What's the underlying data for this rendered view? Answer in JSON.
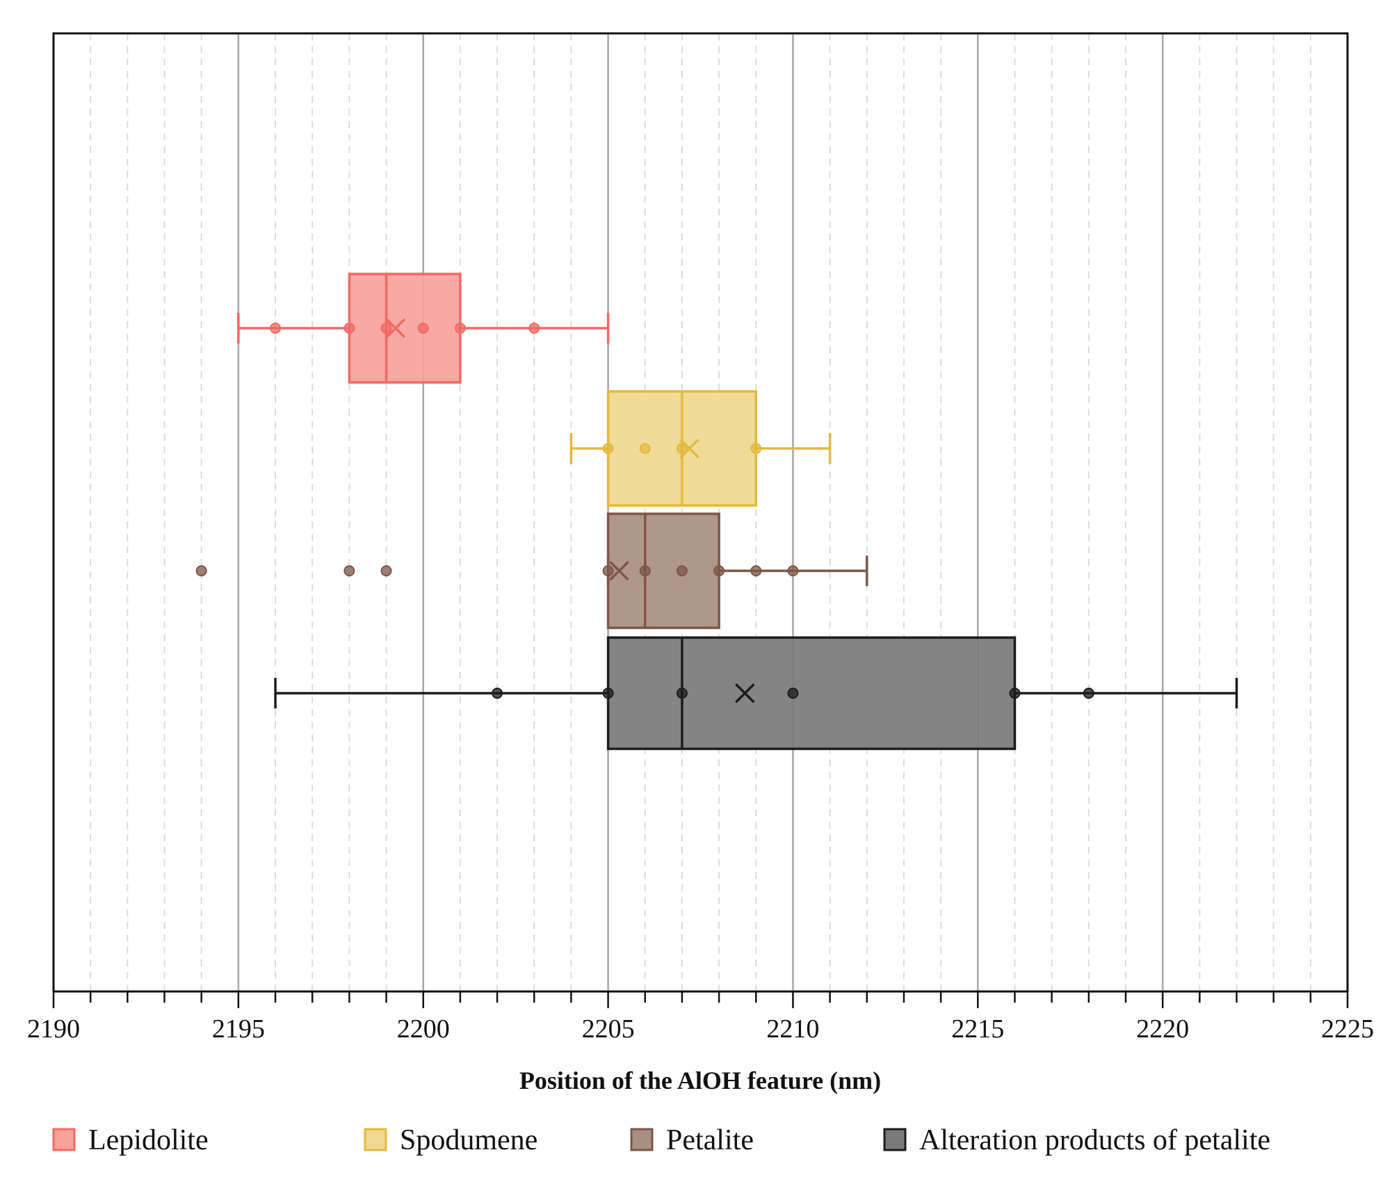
{
  "chart_data": {
    "type": "boxplot",
    "orientation": "horizontal",
    "xlabel": "Position of the AlOH feature (nm)",
    "xlim": [
      2190,
      2225
    ],
    "xticks": [
      2190,
      2195,
      2200,
      2205,
      2210,
      2215,
      2220,
      2225
    ],
    "minor_tick_step": 1,
    "grid": "major solid, minor dashed (vertical)",
    "legend_position": "bottom",
    "series": [
      {
        "name": "Lepidolite",
        "color": "#f06a64",
        "fill": "#f9a19c",
        "whisker_low": 2195,
        "q1": 2198,
        "median": 2199,
        "q3": 2201,
        "whisker_high": 2205,
        "mean": 2199.25,
        "points": [
          2196,
          2198,
          2199,
          2200,
          2201,
          2203
        ],
        "outliers": []
      },
      {
        "name": "Spodumene",
        "color": "#e3b93e",
        "fill": "#f0d88f",
        "whisker_low": 2204,
        "q1": 2205,
        "median": 2207,
        "q3": 2209,
        "whisker_high": 2211,
        "mean": 2207.2,
        "points": [
          2205,
          2206,
          2207,
          2209
        ],
        "outliers": []
      },
      {
        "name": "Petalite",
        "color": "#7d5647",
        "fill": "#a98e82",
        "whisker_low": 2205,
        "q1": 2205,
        "median": 2206,
        "q3": 2208,
        "whisker_high": 2212,
        "mean": 2205.3,
        "points": [
          2205,
          2206,
          2207,
          2208,
          2209,
          2210
        ],
        "outliers": [
          2194,
          2198,
          2199
        ]
      },
      {
        "name": "Alteration products of petalite",
        "color": "#1c1c1c",
        "fill": "#7a7a7a",
        "whisker_low": 2196,
        "q1": 2205,
        "median": 2207,
        "q3": 2216,
        "whisker_high": 2222,
        "mean": 2208.7,
        "points": [
          2202,
          2205,
          2207,
          2210,
          2216,
          2218
        ],
        "outliers": []
      }
    ]
  }
}
